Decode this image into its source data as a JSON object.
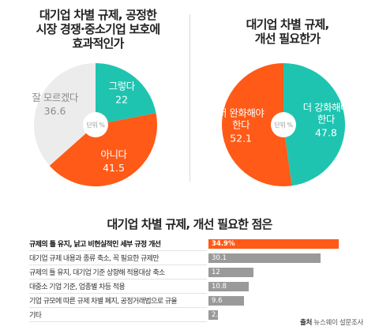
{
  "colors": {
    "orange": "#ff5a17",
    "teal": "#1fc4b0",
    "gray": "#ececec",
    "bar_gray": "#9a9a9a",
    "center": "#ffffff"
  },
  "center_label": "단위 %",
  "source": {
    "prefix": "출처",
    "text": " 뉴스웨이 설문조사"
  },
  "chart_data": [
    {
      "type": "pie",
      "title": "대기업 차별 규제, 공정한\n시장 경쟁·중소기업 보호에\n효과적인가",
      "slices": [
        {
          "label": "그렇다",
          "value": 22,
          "value_text": "22",
          "color": "#1fc4b0"
        },
        {
          "label": "아니다",
          "value": 41.5,
          "value_text": "41.5",
          "color": "#ff5a17"
        },
        {
          "label": "잘 모르겠다",
          "value": 36.6,
          "value_text": "36.6",
          "color": "#ececec"
        }
      ]
    },
    {
      "type": "pie",
      "title": "대기업 차별 규제,\n개선 필요한가",
      "slices": [
        {
          "label": "더 강화해야 한다",
          "value": 47.8,
          "value_text": "47.8",
          "color": "#1fc4b0"
        },
        {
          "label": "더 완화해야 한다",
          "value": 52.1,
          "value_text": "52.1",
          "color": "#ff5a17"
        }
      ]
    },
    {
      "type": "bar",
      "title": "대기업 차별 규제, 개선 필요한 점은",
      "categories": [
        "규제의 틀 유지, 낡고 비현실적인 세부 규정 개선",
        "대기업 규제 내용과 종류 축소, 꼭 필요한 규제만",
        "규제의 틀 유지, 대기업 기준 상향해 적용대상 축소",
        "대중소 기업 기준, 업종별 차등 적용",
        "기업 규모에 따른 규제 차별 폐지, 공정거래법으로 규율",
        "기타"
      ],
      "values": [
        34.9,
        30.1,
        12,
        10.8,
        9.6,
        2.6
      ],
      "value_texts": [
        "34.9%",
        "30.1",
        "12",
        "10.8",
        "9.6",
        "2.6"
      ],
      "highlight_index": 0
    }
  ]
}
